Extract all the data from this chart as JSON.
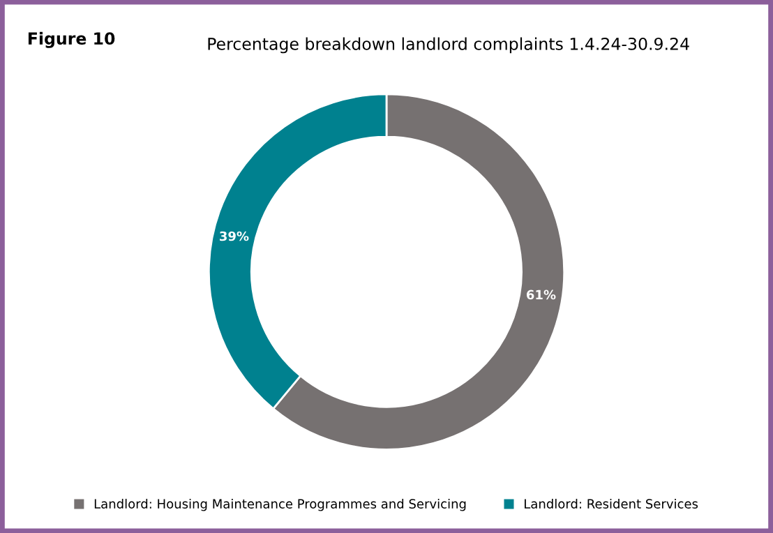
{
  "chart_data": {
    "type": "donut",
    "title": "Percentage breakdown landlord complaints 1.4.24-30.9.24",
    "annotations": [
      "Figure 10"
    ],
    "categories": [
      "Landlord: Housing Maintenance Programmes and Servicing",
      "Landlord: Resident Services"
    ],
    "values": [
      61,
      39
    ],
    "colors": [
      "#767171",
      "#00818f"
    ],
    "value_labels": [
      "61%",
      "39%"
    ],
    "legend": "bottom"
  }
}
